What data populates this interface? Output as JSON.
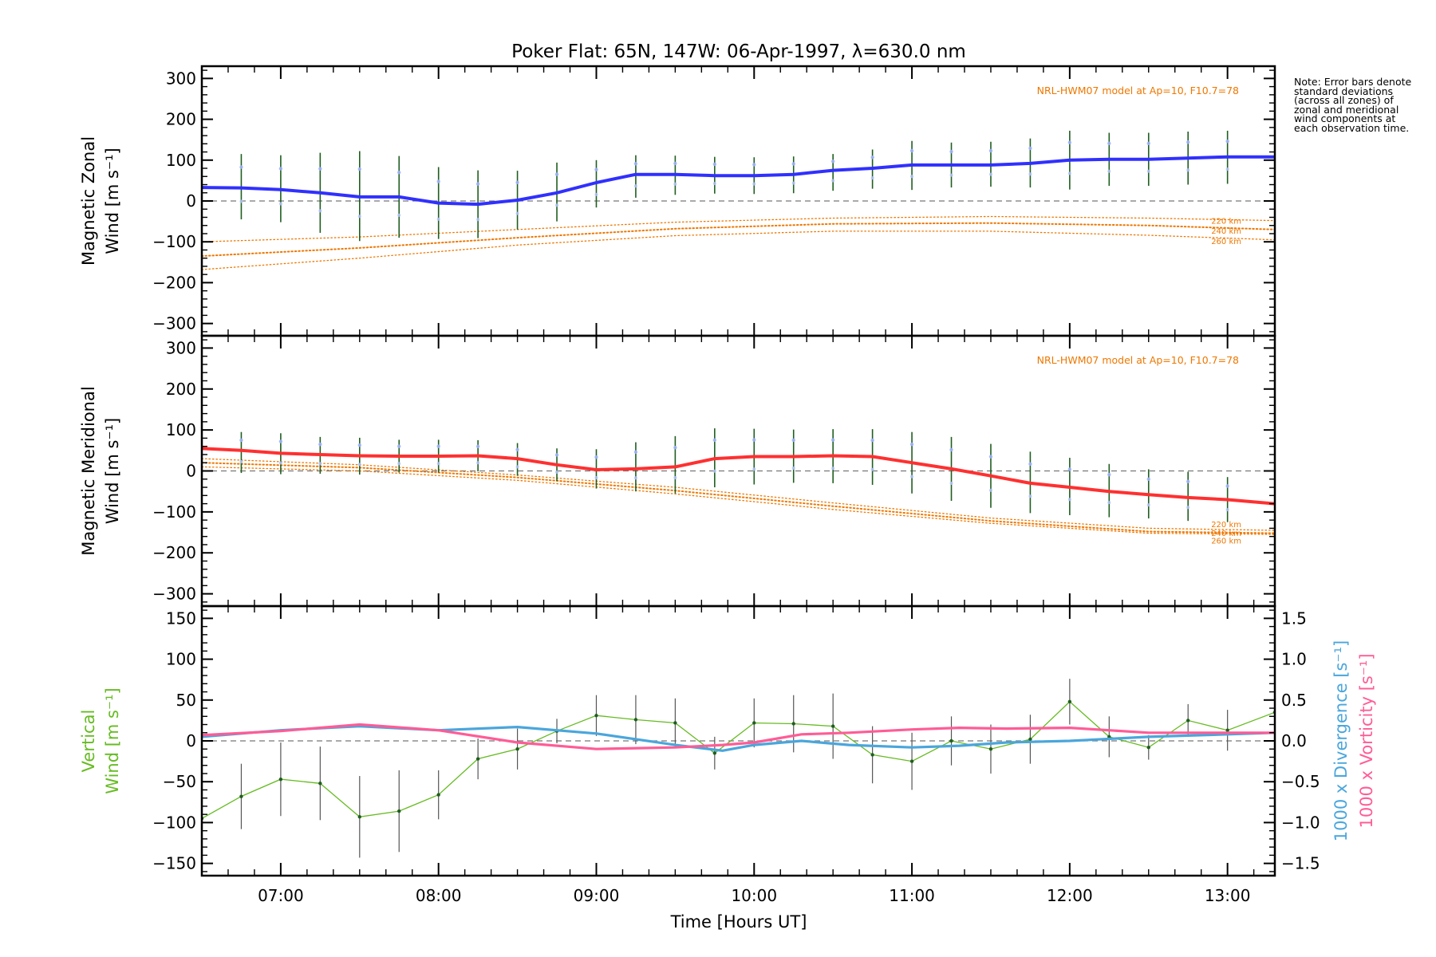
{
  "chart_data": {
    "type": "line",
    "title": "Poker Flat: 65N, 147W: 06-Apr-1997, λ=630.0 nm",
    "xlabel": "Time [Hours UT]",
    "x_ticks": [
      "07:00",
      "08:00",
      "09:00",
      "10:00",
      "11:00",
      "12:00",
      "13:00"
    ],
    "xlim_hours": [
      6.5,
      13.3
    ],
    "note": "Note: Error bars denote standard deviations (across all zones) of zonal and meridional wind components at each observation time.",
    "colors": {
      "zonal": "#3030ff",
      "meridional": "#ff3030",
      "model": "#ee7700",
      "vertical": "#66bb22",
      "divergence": "#4aa6dc",
      "vorticity": "#ff5c96",
      "errorbar": "#1f5e1f",
      "zero_line": "#777777"
    },
    "panels": [
      {
        "id": "zonal",
        "ylabel_lines": [
          "Magnetic Zonal",
          "Wind [m s⁻¹]"
        ],
        "ylim": [
          -330,
          330
        ],
        "y_ticks": [
          "300",
          "200",
          "100",
          "0",
          "−100",
          "−200",
          "−300"
        ],
        "model_label": "NRL-HWM07 model at Ap=10, F10.7=78",
        "model_altitudes": [
          "220 km",
          "240 km",
          "260 km"
        ],
        "series_name": "Magnetic Zonal Wind",
        "x": [
          6.5,
          6.75,
          7.0,
          7.25,
          7.5,
          7.75,
          8.0,
          8.25,
          8.5,
          8.75,
          9.0,
          9.25,
          9.5,
          9.75,
          10.0,
          10.25,
          10.5,
          10.75,
          11.0,
          11.25,
          11.5,
          11.75,
          12.0,
          12.25,
          12.5,
          12.75,
          13.0,
          13.3
        ],
        "values": [
          33,
          32,
          28,
          20,
          10,
          10,
          -5,
          -8,
          2,
          20,
          45,
          65,
          65,
          62,
          62,
          65,
          75,
          80,
          88,
          88,
          88,
          92,
          100,
          102,
          102,
          105,
          108,
          108
        ],
        "errorbars": [
          {
            "x": 6.75,
            "y": 35,
            "err": 80
          },
          {
            "x": 7.0,
            "y": 30,
            "err": 82
          },
          {
            "x": 7.25,
            "y": 20,
            "err": 98
          },
          {
            "x": 7.5,
            "y": 12,
            "err": 110
          },
          {
            "x": 7.75,
            "y": 10,
            "err": 100
          },
          {
            "x": 8.0,
            "y": -5,
            "err": 88
          },
          {
            "x": 8.25,
            "y": -8,
            "err": 83
          },
          {
            "x": 8.5,
            "y": 2,
            "err": 72
          },
          {
            "x": 8.75,
            "y": 22,
            "err": 72
          },
          {
            "x": 9.0,
            "y": 42,
            "err": 58
          },
          {
            "x": 9.25,
            "y": 60,
            "err": 52
          },
          {
            "x": 9.5,
            "y": 63,
            "err": 48
          },
          {
            "x": 9.75,
            "y": 63,
            "err": 45
          },
          {
            "x": 10.0,
            "y": 62,
            "err": 45
          },
          {
            "x": 10.25,
            "y": 64,
            "err": 45
          },
          {
            "x": 10.5,
            "y": 70,
            "err": 45
          },
          {
            "x": 10.75,
            "y": 78,
            "err": 48
          },
          {
            "x": 11.0,
            "y": 87,
            "err": 60
          },
          {
            "x": 11.25,
            "y": 88,
            "err": 55
          },
          {
            "x": 11.5,
            "y": 90,
            "err": 55
          },
          {
            "x": 11.75,
            "y": 93,
            "err": 60
          },
          {
            "x": 12.0,
            "y": 100,
            "err": 72
          },
          {
            "x": 12.25,
            "y": 102,
            "err": 65
          },
          {
            "x": 12.5,
            "y": 102,
            "err": 65
          },
          {
            "x": 12.75,
            "y": 105,
            "err": 65
          },
          {
            "x": 13.0,
            "y": 107,
            "err": 65
          }
        ],
        "model_series": [
          {
            "name": "220 km",
            "x": [
              6.5,
              7.5,
              8.5,
              9.5,
              10.5,
              11.5,
              12.5,
              13.3
            ],
            "values": [
              -100,
              -88,
              -70,
              -52,
              -42,
              -38,
              -42,
              -48
            ]
          },
          {
            "name": "240 km",
            "x": [
              6.5,
              7.5,
              8.5,
              9.5,
              10.5,
              11.5,
              12.5,
              13.3
            ],
            "values": [
              -135,
              -115,
              -90,
              -68,
              -56,
              -54,
              -60,
              -70
            ]
          },
          {
            "name": "260 km",
            "x": [
              6.5,
              7.5,
              8.5,
              9.5,
              10.5,
              11.5,
              12.5,
              13.3
            ],
            "values": [
              -168,
              -140,
              -108,
              -85,
              -74,
              -74,
              -84,
              -95
            ]
          }
        ]
      },
      {
        "id": "meridional",
        "ylabel_lines": [
          "Magnetic Meridional",
          "Wind [m s⁻¹]"
        ],
        "ylim": [
          -330,
          330
        ],
        "y_ticks": [
          "300",
          "200",
          "100",
          "0",
          "−100",
          "−200",
          "−300"
        ],
        "model_label": "NRL-HWM07 model at Ap=10, F10.7=78",
        "model_altitudes": [
          "220 km",
          "240 km",
          "260 km"
        ],
        "series_name": "Magnetic Meridional Wind",
        "x": [
          6.5,
          6.75,
          7.0,
          7.25,
          7.5,
          7.75,
          8.0,
          8.25,
          8.5,
          8.75,
          9.0,
          9.25,
          9.5,
          9.75,
          10.0,
          10.25,
          10.5,
          10.75,
          11.0,
          11.25,
          11.5,
          11.75,
          12.0,
          12.25,
          12.5,
          12.75,
          13.0,
          13.3
        ],
        "values": [
          55,
          50,
          43,
          40,
          37,
          36,
          36,
          37,
          30,
          15,
          3,
          5,
          10,
          30,
          35,
          35,
          37,
          35,
          20,
          5,
          -12,
          -30,
          -40,
          -50,
          -58,
          -65,
          -70,
          -80
        ],
        "errorbars": [
          {
            "x": 6.75,
            "y": 45,
            "err": 50
          },
          {
            "x": 7.0,
            "y": 42,
            "err": 50
          },
          {
            "x": 7.25,
            "y": 38,
            "err": 45
          },
          {
            "x": 7.5,
            "y": 36,
            "err": 45
          },
          {
            "x": 7.75,
            "y": 36,
            "err": 40
          },
          {
            "x": 8.0,
            "y": 36,
            "err": 40
          },
          {
            "x": 8.25,
            "y": 37,
            "err": 38
          },
          {
            "x": 8.5,
            "y": 28,
            "err": 40
          },
          {
            "x": 8.75,
            "y": 15,
            "err": 40
          },
          {
            "x": 9.0,
            "y": 5,
            "err": 48
          },
          {
            "x": 9.25,
            "y": 10,
            "err": 60
          },
          {
            "x": 9.5,
            "y": 15,
            "err": 70
          },
          {
            "x": 9.75,
            "y": 32,
            "err": 72
          },
          {
            "x": 10.0,
            "y": 35,
            "err": 68
          },
          {
            "x": 10.25,
            "y": 36,
            "err": 65
          },
          {
            "x": 10.5,
            "y": 36,
            "err": 66
          },
          {
            "x": 10.75,
            "y": 34,
            "err": 68
          },
          {
            "x": 11.0,
            "y": 20,
            "err": 75
          },
          {
            "x": 11.25,
            "y": 5,
            "err": 78
          },
          {
            "x": 11.5,
            "y": -12,
            "err": 78
          },
          {
            "x": 11.75,
            "y": -28,
            "err": 75
          },
          {
            "x": 12.0,
            "y": -38,
            "err": 70
          },
          {
            "x": 12.25,
            "y": -48,
            "err": 65
          },
          {
            "x": 12.5,
            "y": -56,
            "err": 60
          },
          {
            "x": 12.75,
            "y": -62,
            "err": 60
          },
          {
            "x": 13.0,
            "y": -70,
            "err": 55
          }
        ],
        "model_series": [
          {
            "name": "220 km",
            "x": [
              6.5,
              7.5,
              8.5,
              9.5,
              10.5,
              11.5,
              12.5,
              13.3
            ],
            "values": [
              30,
              15,
              -10,
              -40,
              -78,
              -115,
              -140,
              -145
            ]
          },
          {
            "name": "240 km",
            "x": [
              6.5,
              7.5,
              8.5,
              9.5,
              10.5,
              11.5,
              12.5,
              13.3
            ],
            "values": [
              20,
              8,
              -16,
              -48,
              -86,
              -122,
              -148,
              -152
            ]
          },
          {
            "name": "260 km",
            "x": [
              6.5,
              7.5,
              8.5,
              9.5,
              10.5,
              11.5,
              12.5,
              13.3
            ],
            "values": [
              10,
              0,
              -23,
              -56,
              -94,
              -128,
              -152,
              -155
            ]
          }
        ]
      },
      {
        "id": "vertical",
        "ylabel_lines": [
          "Vertical",
          "Wind [m s⁻¹]"
        ],
        "ylim": [
          -165,
          165
        ],
        "y_ticks": [
          "150",
          "100",
          "50",
          "0",
          "−50",
          "−100",
          "−150"
        ],
        "right_ylim": [
          -1.65,
          1.65
        ],
        "right_ticks": [
          "1.5",
          "1.0",
          "0.5",
          "0.0",
          "−0.5",
          "−1.0",
          "−1.5"
        ],
        "right_label_divergence": "1000 x Divergence [s⁻¹]",
        "right_label_vorticity": "1000 x Vorticity [s⁻¹]",
        "vertical_wind": {
          "x": [
            6.5,
            6.75,
            7.0,
            7.25,
            7.5,
            7.75,
            8.0,
            8.25,
            8.5,
            8.75,
            9.0,
            9.25,
            9.5,
            9.75,
            10.0,
            10.25,
            10.5,
            10.75,
            11.0,
            11.25,
            11.5,
            11.75,
            12.0,
            12.25,
            12.5,
            12.75,
            13.0,
            13.3
          ],
          "values": [
            -95,
            -68,
            -47,
            -52,
            -93,
            -86,
            -66,
            -22,
            -10,
            12,
            31,
            26,
            22,
            -15,
            22,
            21,
            18,
            -17,
            -25,
            0,
            -10,
            2,
            48,
            5,
            -8,
            25,
            13,
            35
          ],
          "err": [
            0,
            40,
            45,
            45,
            50,
            50,
            30,
            25,
            25,
            15,
            25,
            30,
            30,
            20,
            30,
            35,
            40,
            35,
            35,
            30,
            30,
            30,
            28,
            25,
            15,
            20,
            25,
            0
          ]
        },
        "divergence": {
          "x": [
            6.5,
            7.0,
            7.5,
            8.0,
            8.5,
            9.0,
            9.5,
            9.8,
            10.0,
            10.3,
            10.6,
            11.0,
            11.3,
            11.6,
            12.0,
            12.5,
            13.0,
            13.3
          ],
          "values": [
            0.05,
            0.13,
            0.18,
            0.13,
            0.17,
            0.09,
            -0.05,
            -0.12,
            -0.05,
            0.0,
            -0.05,
            -0.08,
            -0.06,
            -0.02,
            0.0,
            0.05,
            0.08,
            0.1
          ]
        },
        "vorticity": {
          "x": [
            6.5,
            7.0,
            7.5,
            8.0,
            8.5,
            9.0,
            9.5,
            9.8,
            10.0,
            10.3,
            10.6,
            11.0,
            11.3,
            11.6,
            12.0,
            12.5,
            13.0,
            13.3
          ],
          "values": [
            0.07,
            0.12,
            0.2,
            0.13,
            -0.02,
            -0.1,
            -0.08,
            -0.05,
            -0.02,
            0.08,
            0.1,
            0.14,
            0.16,
            0.15,
            0.16,
            0.1,
            0.1,
            0.1
          ]
        }
      }
    ]
  }
}
